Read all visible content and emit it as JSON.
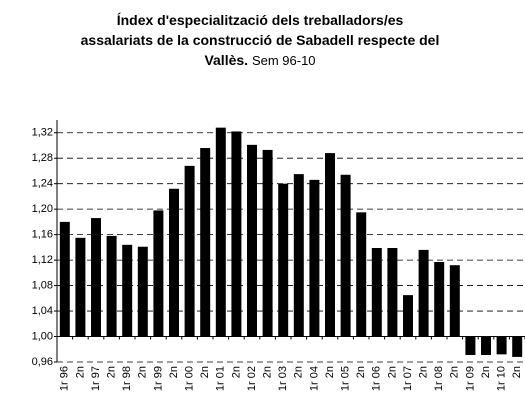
{
  "chart_data": {
    "type": "bar",
    "title": "Índex d'especialització dels treballadors/es assalariats de la construcció de Sabadell respecte del Vallès.",
    "subtitle": "Sem 96-10",
    "categories": [
      "1r 96",
      "2n",
      "1r 97",
      "2n",
      "1r 98",
      "2n",
      "1r 99",
      "2n",
      "1r 00",
      "2n",
      "1r 01",
      "2n",
      "1r 02",
      "2n",
      "1r 03",
      "2n",
      "1r 04",
      "2n",
      "1r 05",
      "2n",
      "1r 06",
      "2n",
      "1r 07",
      "2n",
      "1r 08",
      "2n",
      "1r 09",
      "2n",
      "1r 10",
      "2n"
    ],
    "values": [
      1.18,
      1.155,
      1.186,
      1.158,
      1.144,
      1.141,
      1.198,
      1.232,
      1.268,
      1.296,
      1.328,
      1.322,
      1.301,
      1.293,
      1.24,
      1.255,
      1.246,
      1.288,
      1.254,
      1.195,
      1.139,
      1.139,
      1.065,
      1.136,
      1.117,
      1.112,
      0.971,
      0.971,
      0.972,
      0.968
    ],
    "color": "#000000",
    "baseline": 1.0,
    "ylim": [
      0.96,
      1.34
    ],
    "yticks": [
      {
        "value": 0.96,
        "label": "0,96"
      },
      {
        "value": 1.0,
        "label": "1,00"
      },
      {
        "value": 1.04,
        "label": "1,04"
      },
      {
        "value": 1.08,
        "label": "1,08"
      },
      {
        "value": 1.12,
        "label": "1,12"
      },
      {
        "value": 1.16,
        "label": "1,16"
      },
      {
        "value": 1.2,
        "label": "1,20"
      },
      {
        "value": 1.24,
        "label": "1,24"
      },
      {
        "value": 1.28,
        "label": "1,28"
      },
      {
        "value": 1.32,
        "label": "1,32"
      }
    ],
    "grid": true
  }
}
